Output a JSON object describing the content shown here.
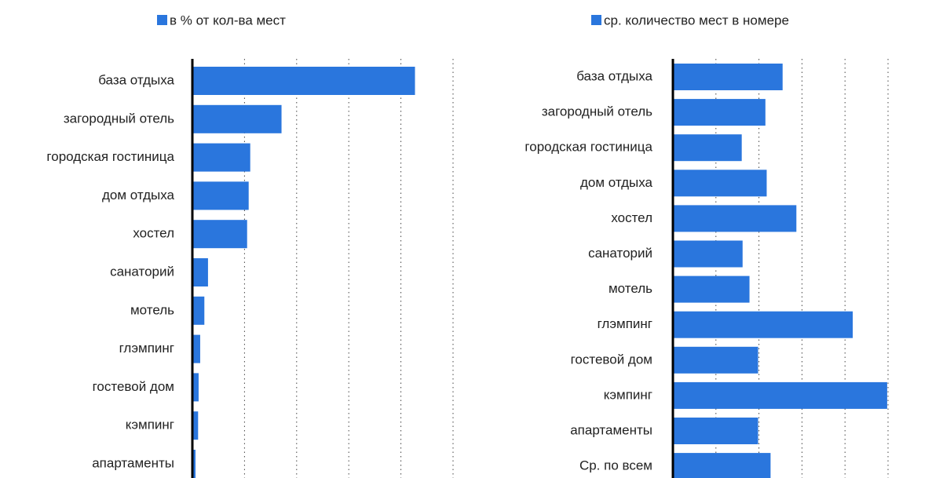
{
  "chart_data": [
    {
      "type": "bar",
      "orientation": "horizontal",
      "categories": [
        "база отдыха",
        "загородный отель",
        "городская гостиница",
        "дом отдыха",
        "хостел",
        "санаторий",
        "мотель",
        "глэмпинг",
        "гостевой дом",
        "кэмпинг",
        "апартаменты"
      ],
      "series": [
        {
          "name": "в % от кол-ва мест",
          "color": "#2a76dd",
          "values": [
            42.7,
            17.1,
            11.1,
            10.8,
            10.5,
            3.0,
            2.3,
            1.5,
            1.2,
            1.1,
            0.6
          ]
        }
      ],
      "xlim": [
        0,
        50
      ],
      "xticks": [
        0,
        10,
        20,
        30,
        40,
        50
      ],
      "grid": true,
      "legend": "top"
    },
    {
      "type": "bar",
      "orientation": "horizontal",
      "categories": [
        "база отдыха",
        "загородный отель",
        "городская гостиница",
        "дом отдыха",
        "хостел",
        "санаторий",
        "мотель",
        "глэмпинг",
        "гостевой дом",
        "кэмпинг",
        "апартаменты",
        "Ср. по всем"
      ],
      "series": [
        {
          "name": "ср. количество мест в номере",
          "color": "#2a76dd",
          "values": [
            2.55,
            2.15,
            1.6,
            2.18,
            2.87,
            1.62,
            1.78,
            4.18,
            1.98,
            4.98,
            1.98,
            2.27
          ]
        }
      ],
      "xlim": [
        0,
        5
      ],
      "xticks": [
        0,
        1,
        2,
        3,
        4,
        5
      ],
      "grid": true,
      "legend": "top"
    }
  ]
}
